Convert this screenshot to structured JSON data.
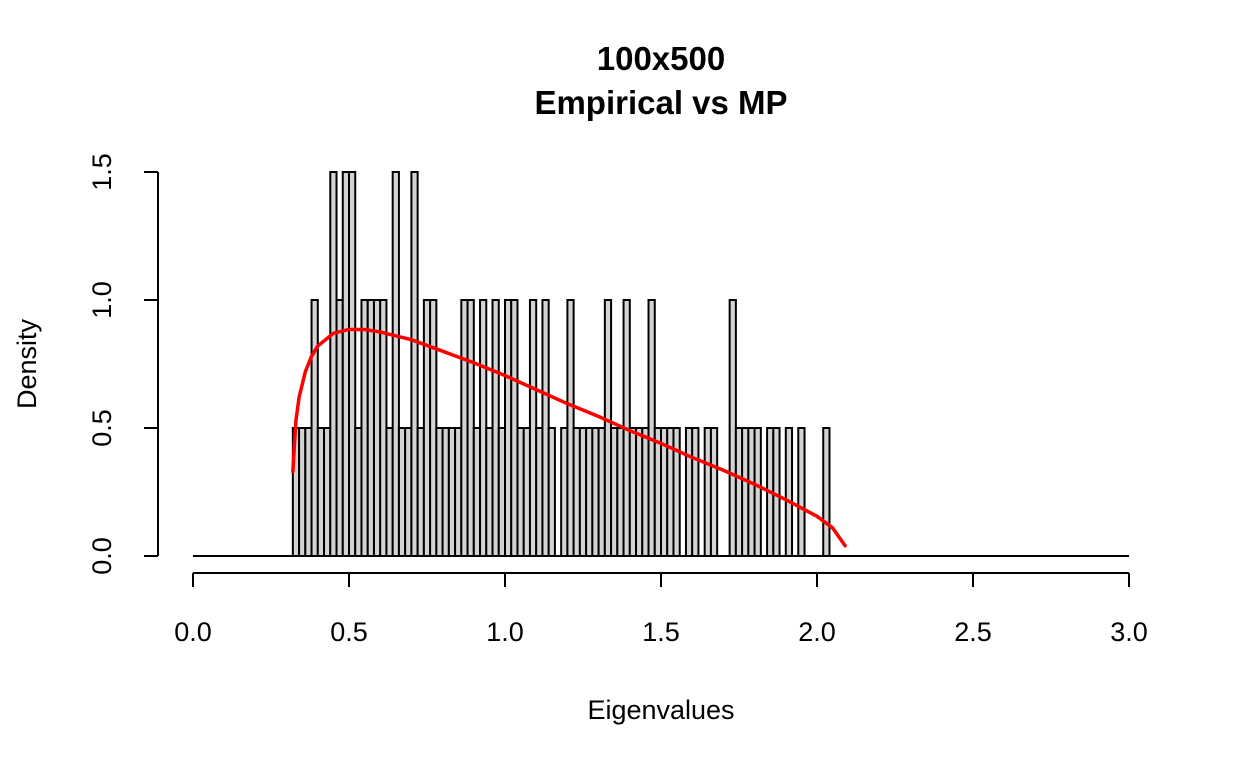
{
  "chart_data": {
    "type": "bar",
    "title": [
      "100x500",
      "Empirical vs MP"
    ],
    "xlabel": "Eigenvalues",
    "ylabel": "Density",
    "xlim": [
      0,
      3
    ],
    "ylim": [
      0,
      1.5
    ],
    "xticks": [
      "0.0",
      "0.5",
      "1.0",
      "1.5",
      "2.0",
      "2.5",
      "3.0"
    ],
    "yticks": [
      "0.0",
      "0.5",
      "1.0",
      "1.5"
    ],
    "bin_width": 0.02,
    "bins_start": 0.0,
    "bins_end": 3.0,
    "histogram_density": [
      [
        0.32,
        0.5
      ],
      [
        0.34,
        0.5
      ],
      [
        0.36,
        0.5
      ],
      [
        0.38,
        1.0
      ],
      [
        0.4,
        0.5
      ],
      [
        0.42,
        0.5
      ],
      [
        0.44,
        1.5
      ],
      [
        0.46,
        1.0
      ],
      [
        0.48,
        1.5
      ],
      [
        0.5,
        1.5
      ],
      [
        0.52,
        0.5
      ],
      [
        0.54,
        1.0
      ],
      [
        0.56,
        1.0
      ],
      [
        0.58,
        1.0
      ],
      [
        0.6,
        1.0
      ],
      [
        0.62,
        0.5
      ],
      [
        0.64,
        1.5
      ],
      [
        0.66,
        0.5
      ],
      [
        0.68,
        0.5
      ],
      [
        0.7,
        1.5
      ],
      [
        0.72,
        0.5
      ],
      [
        0.74,
        1.0
      ],
      [
        0.76,
        1.0
      ],
      [
        0.78,
        0.5
      ],
      [
        0.8,
        0.5
      ],
      [
        0.82,
        0.5
      ],
      [
        0.84,
        0.5
      ],
      [
        0.86,
        1.0
      ],
      [
        0.88,
        1.0
      ],
      [
        0.9,
        0.5
      ],
      [
        0.92,
        1.0
      ],
      [
        0.94,
        0.5
      ],
      [
        0.96,
        1.0
      ],
      [
        0.98,
        0.5
      ],
      [
        1.0,
        1.0
      ],
      [
        1.02,
        1.0
      ],
      [
        1.04,
        0.5
      ],
      [
        1.06,
        0.5
      ],
      [
        1.08,
        1.0
      ],
      [
        1.1,
        0.5
      ],
      [
        1.12,
        1.0
      ],
      [
        1.14,
        0.5
      ],
      [
        1.18,
        0.5
      ],
      [
        1.2,
        1.0
      ],
      [
        1.22,
        0.5
      ],
      [
        1.24,
        0.5
      ],
      [
        1.26,
        0.5
      ],
      [
        1.28,
        0.5
      ],
      [
        1.3,
        0.5
      ],
      [
        1.32,
        1.0
      ],
      [
        1.34,
        0.5
      ],
      [
        1.36,
        0.5
      ],
      [
        1.38,
        1.0
      ],
      [
        1.4,
        0.5
      ],
      [
        1.42,
        0.5
      ],
      [
        1.44,
        0.5
      ],
      [
        1.46,
        1.0
      ],
      [
        1.48,
        0.5
      ],
      [
        1.5,
        0.5
      ],
      [
        1.52,
        0.5
      ],
      [
        1.54,
        0.5
      ],
      [
        1.58,
        0.5
      ],
      [
        1.6,
        0.5
      ],
      [
        1.64,
        0.5
      ],
      [
        1.66,
        0.5
      ],
      [
        1.72,
        1.0
      ],
      [
        1.74,
        0.5
      ],
      [
        1.76,
        0.5
      ],
      [
        1.78,
        0.5
      ],
      [
        1.8,
        0.5
      ],
      [
        1.84,
        0.5
      ],
      [
        1.86,
        0.5
      ],
      [
        1.9,
        0.5
      ],
      [
        1.94,
        0.5
      ],
      [
        2.02,
        0.5
      ]
    ],
    "mp_curve": {
      "color": "#ff0000",
      "ratio": 0.2,
      "sigma2": 1.0,
      "x_start": 0.32,
      "x_end": 2.09,
      "points": [
        [
          0.32,
          0.33
        ],
        [
          0.33,
          0.53
        ],
        [
          0.34,
          0.62
        ],
        [
          0.36,
          0.72
        ],
        [
          0.38,
          0.78
        ],
        [
          0.4,
          0.82
        ],
        [
          0.45,
          0.87
        ],
        [
          0.5,
          0.885
        ],
        [
          0.55,
          0.885
        ],
        [
          0.6,
          0.875
        ],
        [
          0.7,
          0.845
        ],
        [
          0.8,
          0.8
        ],
        [
          0.9,
          0.755
        ],
        [
          1.0,
          0.705
        ],
        [
          1.1,
          0.65
        ],
        [
          1.2,
          0.595
        ],
        [
          1.3,
          0.545
        ],
        [
          1.4,
          0.49
        ],
        [
          1.5,
          0.44
        ],
        [
          1.6,
          0.385
        ],
        [
          1.7,
          0.335
        ],
        [
          1.8,
          0.28
        ],
        [
          1.9,
          0.22
        ],
        [
          2.0,
          0.155
        ],
        [
          2.05,
          0.11
        ],
        [
          2.09,
          0.04
        ]
      ]
    },
    "colors": {
      "bar_fill": "#d3d3d3",
      "bar_border": "#000000",
      "curve": "#ff0000"
    },
    "grid": false,
    "legend": "none"
  }
}
